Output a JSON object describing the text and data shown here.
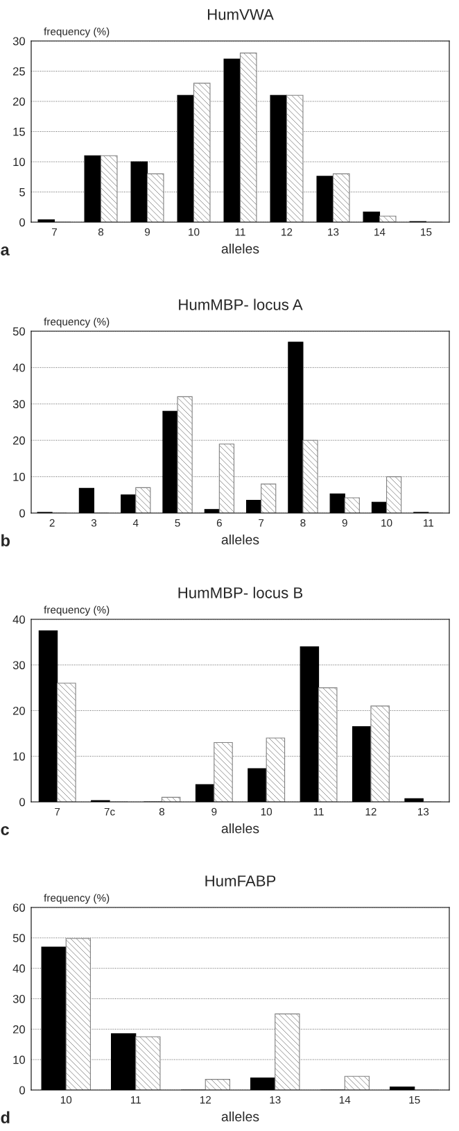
{
  "chart_data": [
    {
      "type": "bar",
      "title": "HumVWA",
      "ylabel": "frequency (%)",
      "xlabel": "alleles",
      "annotations": [
        "a"
      ],
      "categories": [
        "7",
        "8",
        "9",
        "10",
        "11",
        "12",
        "13",
        "14",
        "15"
      ],
      "series": [
        {
          "color": "#000000",
          "values": [
            0.4,
            11,
            10,
            21,
            27,
            21,
            7.6,
            1.7,
            0.1
          ]
        },
        {
          "color": "#808080",
          "values": [
            0,
            11,
            8,
            23,
            28,
            21,
            8,
            1,
            0
          ]
        }
      ],
      "ylim": [
        0,
        30
      ],
      "yticks": [
        0,
        5,
        10,
        15,
        20,
        25,
        30
      ],
      "grid": "y",
      "line_style": "dotted"
    },
    {
      "type": "bar",
      "title": "HumMBP- locus A",
      "ylabel": "frequency (%)",
      "xlabel": "alleles",
      "annotations": [
        "b"
      ],
      "categories": [
        "2",
        "3",
        "4",
        "5",
        "6",
        "7",
        "8",
        "9",
        "10",
        "11"
      ],
      "series": [
        {
          "color": "#000000",
          "values": [
            0.2,
            6.8,
            5,
            28,
            1,
            3.5,
            47,
            5.3,
            3,
            0.2
          ]
        },
        {
          "color": "#808080",
          "values": [
            0,
            0,
            7,
            32,
            19,
            8,
            20,
            4.2,
            10,
            0
          ]
        }
      ],
      "ylim": [
        0,
        50
      ],
      "yticks": [
        0,
        10,
        20,
        30,
        40,
        50
      ],
      "grid": "y",
      "line_style": "dotted"
    },
    {
      "type": "bar",
      "title": "HumMBP- locus B",
      "ylabel": "frequency (%)",
      "xlabel": "alleles",
      "annotations": [
        "c"
      ],
      "categories": [
        "7",
        "7c",
        "8",
        "9",
        "10",
        "11",
        "12",
        "13"
      ],
      "series": [
        {
          "color": "#000000",
          "values": [
            37.5,
            0.3,
            0,
            3.8,
            7.3,
            34,
            16.5,
            0.7
          ]
        },
        {
          "color": "#808080",
          "values": [
            26,
            0,
            1,
            13,
            14,
            25,
            21,
            0
          ]
        }
      ],
      "ylim": [
        0,
        40
      ],
      "yticks": [
        0,
        10,
        20,
        30,
        40
      ],
      "grid": "y",
      "line_style": "dotted"
    },
    {
      "type": "bar",
      "title": "HumFABP",
      "ylabel": "frequency (%)",
      "xlabel": "alleles",
      "annotations": [
        "d"
      ],
      "categories": [
        "10",
        "11",
        "12",
        "13",
        "14",
        "15"
      ],
      "series": [
        {
          "color": "#000000",
          "values": [
            47,
            18.5,
            0,
            4,
            0,
            1
          ]
        },
        {
          "color": "#808080",
          "values": [
            49.8,
            17.5,
            3.5,
            25,
            4.5,
            0
          ]
        }
      ],
      "ylim": [
        0,
        60
      ],
      "yticks": [
        0,
        10,
        20,
        30,
        40,
        50,
        60
      ],
      "grid": "y",
      "line_style": "dotted"
    }
  ]
}
